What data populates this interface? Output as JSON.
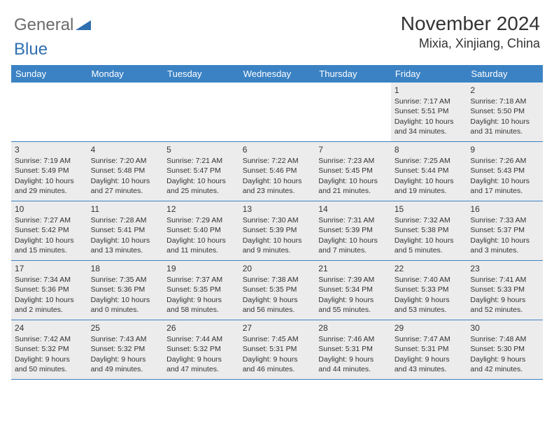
{
  "logo": {
    "part1": "General",
    "part2": "Blue",
    "color1": "#6b6b6b",
    "color2": "#2f6fb0",
    "triangle_color": "#2f6fb0"
  },
  "header": {
    "title": "November 2024",
    "location": "Mixia, Xinjiang, China"
  },
  "colors": {
    "header_bg": "#3b82c4",
    "header_text": "#ffffff",
    "shaded_bg": "#ececec",
    "border": "#3b82c4",
    "text": "#333333"
  },
  "weekdays": [
    "Sunday",
    "Monday",
    "Tuesday",
    "Wednesday",
    "Thursday",
    "Friday",
    "Saturday"
  ],
  "weeks": [
    [
      {
        "num": "",
        "sunrise": "",
        "sunset": "",
        "daylight": ""
      },
      {
        "num": "",
        "sunrise": "",
        "sunset": "",
        "daylight": ""
      },
      {
        "num": "",
        "sunrise": "",
        "sunset": "",
        "daylight": ""
      },
      {
        "num": "",
        "sunrise": "",
        "sunset": "",
        "daylight": ""
      },
      {
        "num": "",
        "sunrise": "",
        "sunset": "",
        "daylight": ""
      },
      {
        "num": "1",
        "sunrise": "Sunrise: 7:17 AM",
        "sunset": "Sunset: 5:51 PM",
        "daylight": "Daylight: 10 hours and 34 minutes."
      },
      {
        "num": "2",
        "sunrise": "Sunrise: 7:18 AM",
        "sunset": "Sunset: 5:50 PM",
        "daylight": "Daylight: 10 hours and 31 minutes."
      }
    ],
    [
      {
        "num": "3",
        "sunrise": "Sunrise: 7:19 AM",
        "sunset": "Sunset: 5:49 PM",
        "daylight": "Daylight: 10 hours and 29 minutes."
      },
      {
        "num": "4",
        "sunrise": "Sunrise: 7:20 AM",
        "sunset": "Sunset: 5:48 PM",
        "daylight": "Daylight: 10 hours and 27 minutes."
      },
      {
        "num": "5",
        "sunrise": "Sunrise: 7:21 AM",
        "sunset": "Sunset: 5:47 PM",
        "daylight": "Daylight: 10 hours and 25 minutes."
      },
      {
        "num": "6",
        "sunrise": "Sunrise: 7:22 AM",
        "sunset": "Sunset: 5:46 PM",
        "daylight": "Daylight: 10 hours and 23 minutes."
      },
      {
        "num": "7",
        "sunrise": "Sunrise: 7:23 AM",
        "sunset": "Sunset: 5:45 PM",
        "daylight": "Daylight: 10 hours and 21 minutes."
      },
      {
        "num": "8",
        "sunrise": "Sunrise: 7:25 AM",
        "sunset": "Sunset: 5:44 PM",
        "daylight": "Daylight: 10 hours and 19 minutes."
      },
      {
        "num": "9",
        "sunrise": "Sunrise: 7:26 AM",
        "sunset": "Sunset: 5:43 PM",
        "daylight": "Daylight: 10 hours and 17 minutes."
      }
    ],
    [
      {
        "num": "10",
        "sunrise": "Sunrise: 7:27 AM",
        "sunset": "Sunset: 5:42 PM",
        "daylight": "Daylight: 10 hours and 15 minutes."
      },
      {
        "num": "11",
        "sunrise": "Sunrise: 7:28 AM",
        "sunset": "Sunset: 5:41 PM",
        "daylight": "Daylight: 10 hours and 13 minutes."
      },
      {
        "num": "12",
        "sunrise": "Sunrise: 7:29 AM",
        "sunset": "Sunset: 5:40 PM",
        "daylight": "Daylight: 10 hours and 11 minutes."
      },
      {
        "num": "13",
        "sunrise": "Sunrise: 7:30 AM",
        "sunset": "Sunset: 5:39 PM",
        "daylight": "Daylight: 10 hours and 9 minutes."
      },
      {
        "num": "14",
        "sunrise": "Sunrise: 7:31 AM",
        "sunset": "Sunset: 5:39 PM",
        "daylight": "Daylight: 10 hours and 7 minutes."
      },
      {
        "num": "15",
        "sunrise": "Sunrise: 7:32 AM",
        "sunset": "Sunset: 5:38 PM",
        "daylight": "Daylight: 10 hours and 5 minutes."
      },
      {
        "num": "16",
        "sunrise": "Sunrise: 7:33 AM",
        "sunset": "Sunset: 5:37 PM",
        "daylight": "Daylight: 10 hours and 3 minutes."
      }
    ],
    [
      {
        "num": "17",
        "sunrise": "Sunrise: 7:34 AM",
        "sunset": "Sunset: 5:36 PM",
        "daylight": "Daylight: 10 hours and 2 minutes."
      },
      {
        "num": "18",
        "sunrise": "Sunrise: 7:35 AM",
        "sunset": "Sunset: 5:36 PM",
        "daylight": "Daylight: 10 hours and 0 minutes."
      },
      {
        "num": "19",
        "sunrise": "Sunrise: 7:37 AM",
        "sunset": "Sunset: 5:35 PM",
        "daylight": "Daylight: 9 hours and 58 minutes."
      },
      {
        "num": "20",
        "sunrise": "Sunrise: 7:38 AM",
        "sunset": "Sunset: 5:35 PM",
        "daylight": "Daylight: 9 hours and 56 minutes."
      },
      {
        "num": "21",
        "sunrise": "Sunrise: 7:39 AM",
        "sunset": "Sunset: 5:34 PM",
        "daylight": "Daylight: 9 hours and 55 minutes."
      },
      {
        "num": "22",
        "sunrise": "Sunrise: 7:40 AM",
        "sunset": "Sunset: 5:33 PM",
        "daylight": "Daylight: 9 hours and 53 minutes."
      },
      {
        "num": "23",
        "sunrise": "Sunrise: 7:41 AM",
        "sunset": "Sunset: 5:33 PM",
        "daylight": "Daylight: 9 hours and 52 minutes."
      }
    ],
    [
      {
        "num": "24",
        "sunrise": "Sunrise: 7:42 AM",
        "sunset": "Sunset: 5:32 PM",
        "daylight": "Daylight: 9 hours and 50 minutes."
      },
      {
        "num": "25",
        "sunrise": "Sunrise: 7:43 AM",
        "sunset": "Sunset: 5:32 PM",
        "daylight": "Daylight: 9 hours and 49 minutes."
      },
      {
        "num": "26",
        "sunrise": "Sunrise: 7:44 AM",
        "sunset": "Sunset: 5:32 PM",
        "daylight": "Daylight: 9 hours and 47 minutes."
      },
      {
        "num": "27",
        "sunrise": "Sunrise: 7:45 AM",
        "sunset": "Sunset: 5:31 PM",
        "daylight": "Daylight: 9 hours and 46 minutes."
      },
      {
        "num": "28",
        "sunrise": "Sunrise: 7:46 AM",
        "sunset": "Sunset: 5:31 PM",
        "daylight": "Daylight: 9 hours and 44 minutes."
      },
      {
        "num": "29",
        "sunrise": "Sunrise: 7:47 AM",
        "sunset": "Sunset: 5:31 PM",
        "daylight": "Daylight: 9 hours and 43 minutes."
      },
      {
        "num": "30",
        "sunrise": "Sunrise: 7:48 AM",
        "sunset": "Sunset: 5:30 PM",
        "daylight": "Daylight: 9 hours and 42 minutes."
      }
    ]
  ]
}
